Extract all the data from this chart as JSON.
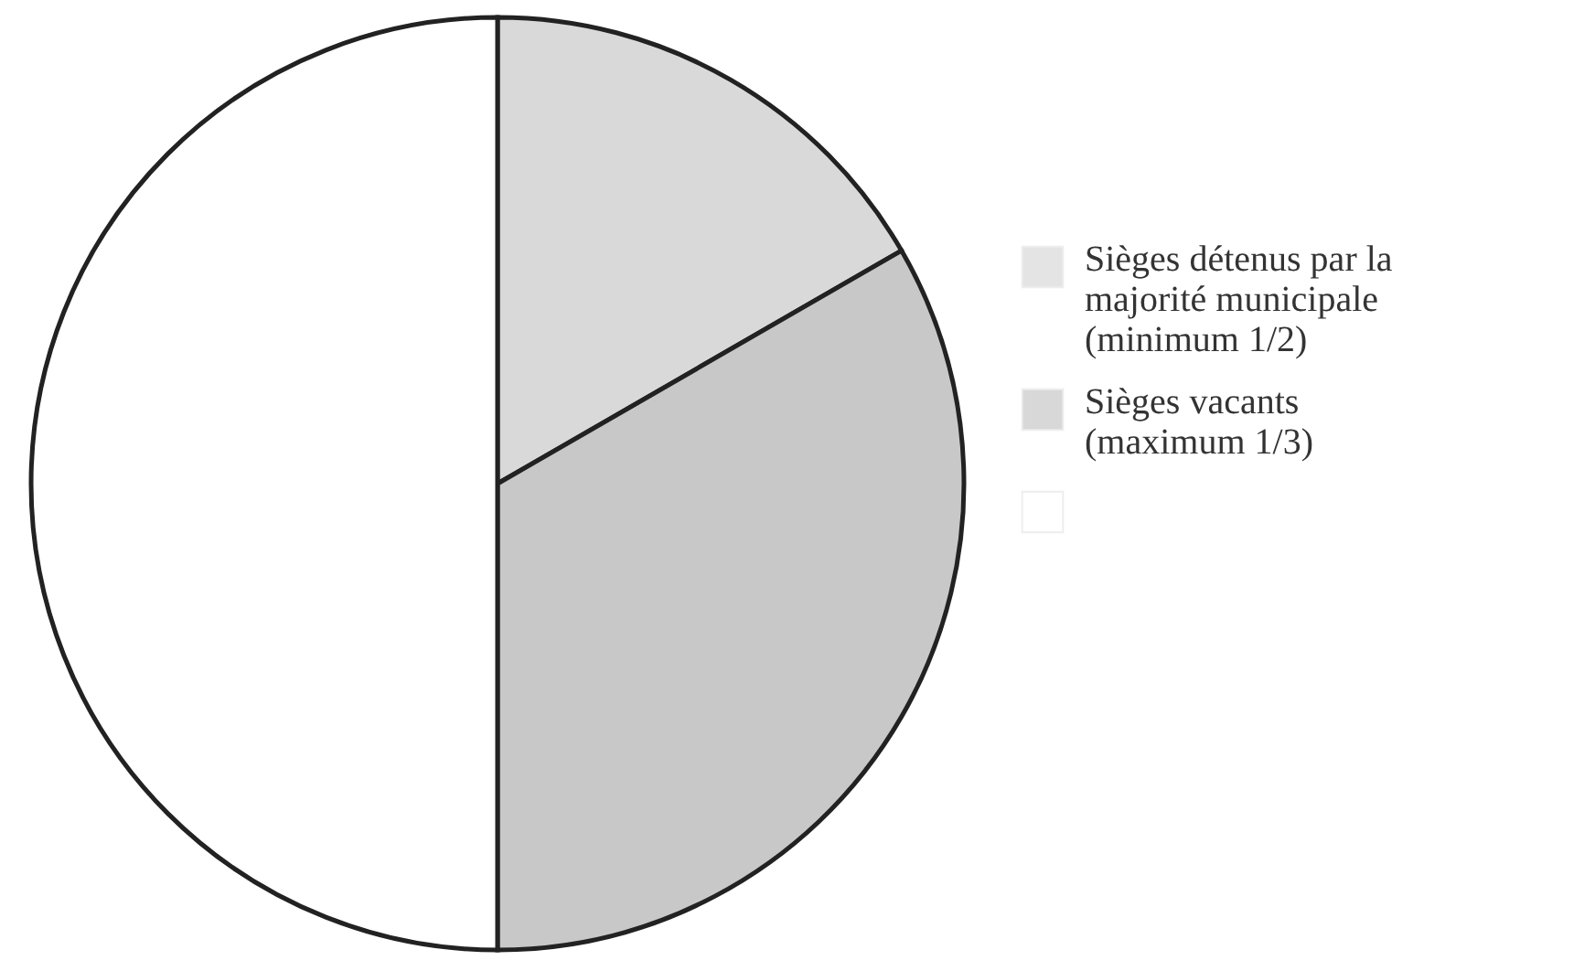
{
  "chart_data": {
    "type": "pie",
    "categories": [
      "Sièges détenus par la majorité municipale (minimum 1/2)",
      "Sièges vacants (maximum 1/3)",
      null
    ],
    "values": [
      16.67,
      33.33,
      50
    ],
    "colors": [
      "#d9d9d9",
      "#c8c8c8",
      "#ffffff"
    ],
    "legend": "right"
  }
}
